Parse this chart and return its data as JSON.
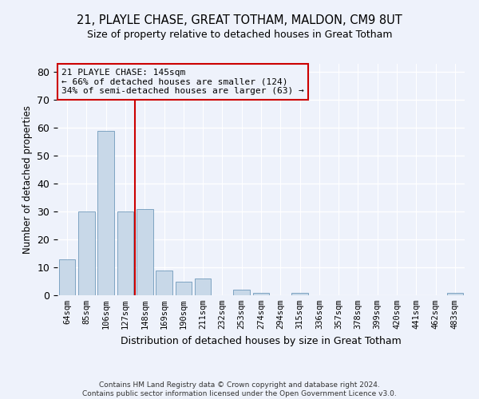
{
  "title1": "21, PLAYLE CHASE, GREAT TOTHAM, MALDON, CM9 8UT",
  "title2": "Size of property relative to detached houses in Great Totham",
  "xlabel": "Distribution of detached houses by size in Great Totham",
  "ylabel": "Number of detached properties",
  "categories": [
    "64sqm",
    "85sqm",
    "106sqm",
    "127sqm",
    "148sqm",
    "169sqm",
    "190sqm",
    "211sqm",
    "232sqm",
    "253sqm",
    "274sqm",
    "294sqm",
    "315sqm",
    "336sqm",
    "357sqm",
    "378sqm",
    "399sqm",
    "420sqm",
    "441sqm",
    "462sqm",
    "483sqm"
  ],
  "values": [
    13,
    30,
    59,
    30,
    31,
    9,
    5,
    6,
    0,
    2,
    1,
    0,
    1,
    0,
    0,
    0,
    0,
    0,
    0,
    0,
    1
  ],
  "bar_color": "#c8d8e8",
  "bar_edge_color": "#5a8ab0",
  "vline_color": "#cc0000",
  "annotation_text": "21 PLAYLE CHASE: 145sqm\n← 66% of detached houses are smaller (124)\n34% of semi-detached houses are larger (63) →",
  "annotation_box_color": "#cc0000",
  "ylim": [
    0,
    83
  ],
  "yticks": [
    0,
    10,
    20,
    30,
    40,
    50,
    60,
    70,
    80
  ],
  "footer": "Contains HM Land Registry data © Crown copyright and database right 2024.\nContains public sector information licensed under the Open Government Licence v3.0.",
  "bg_color": "#eef2fb",
  "grid_color": "#ffffff",
  "title1_fontsize": 10.5,
  "title2_fontsize": 9,
  "ylabel_fontsize": 8.5,
  "xlabel_fontsize": 9,
  "tick_fontsize": 7.5,
  "footer_fontsize": 6.5,
  "ann_fontsize": 8.0,
  "bar_width": 0.85
}
